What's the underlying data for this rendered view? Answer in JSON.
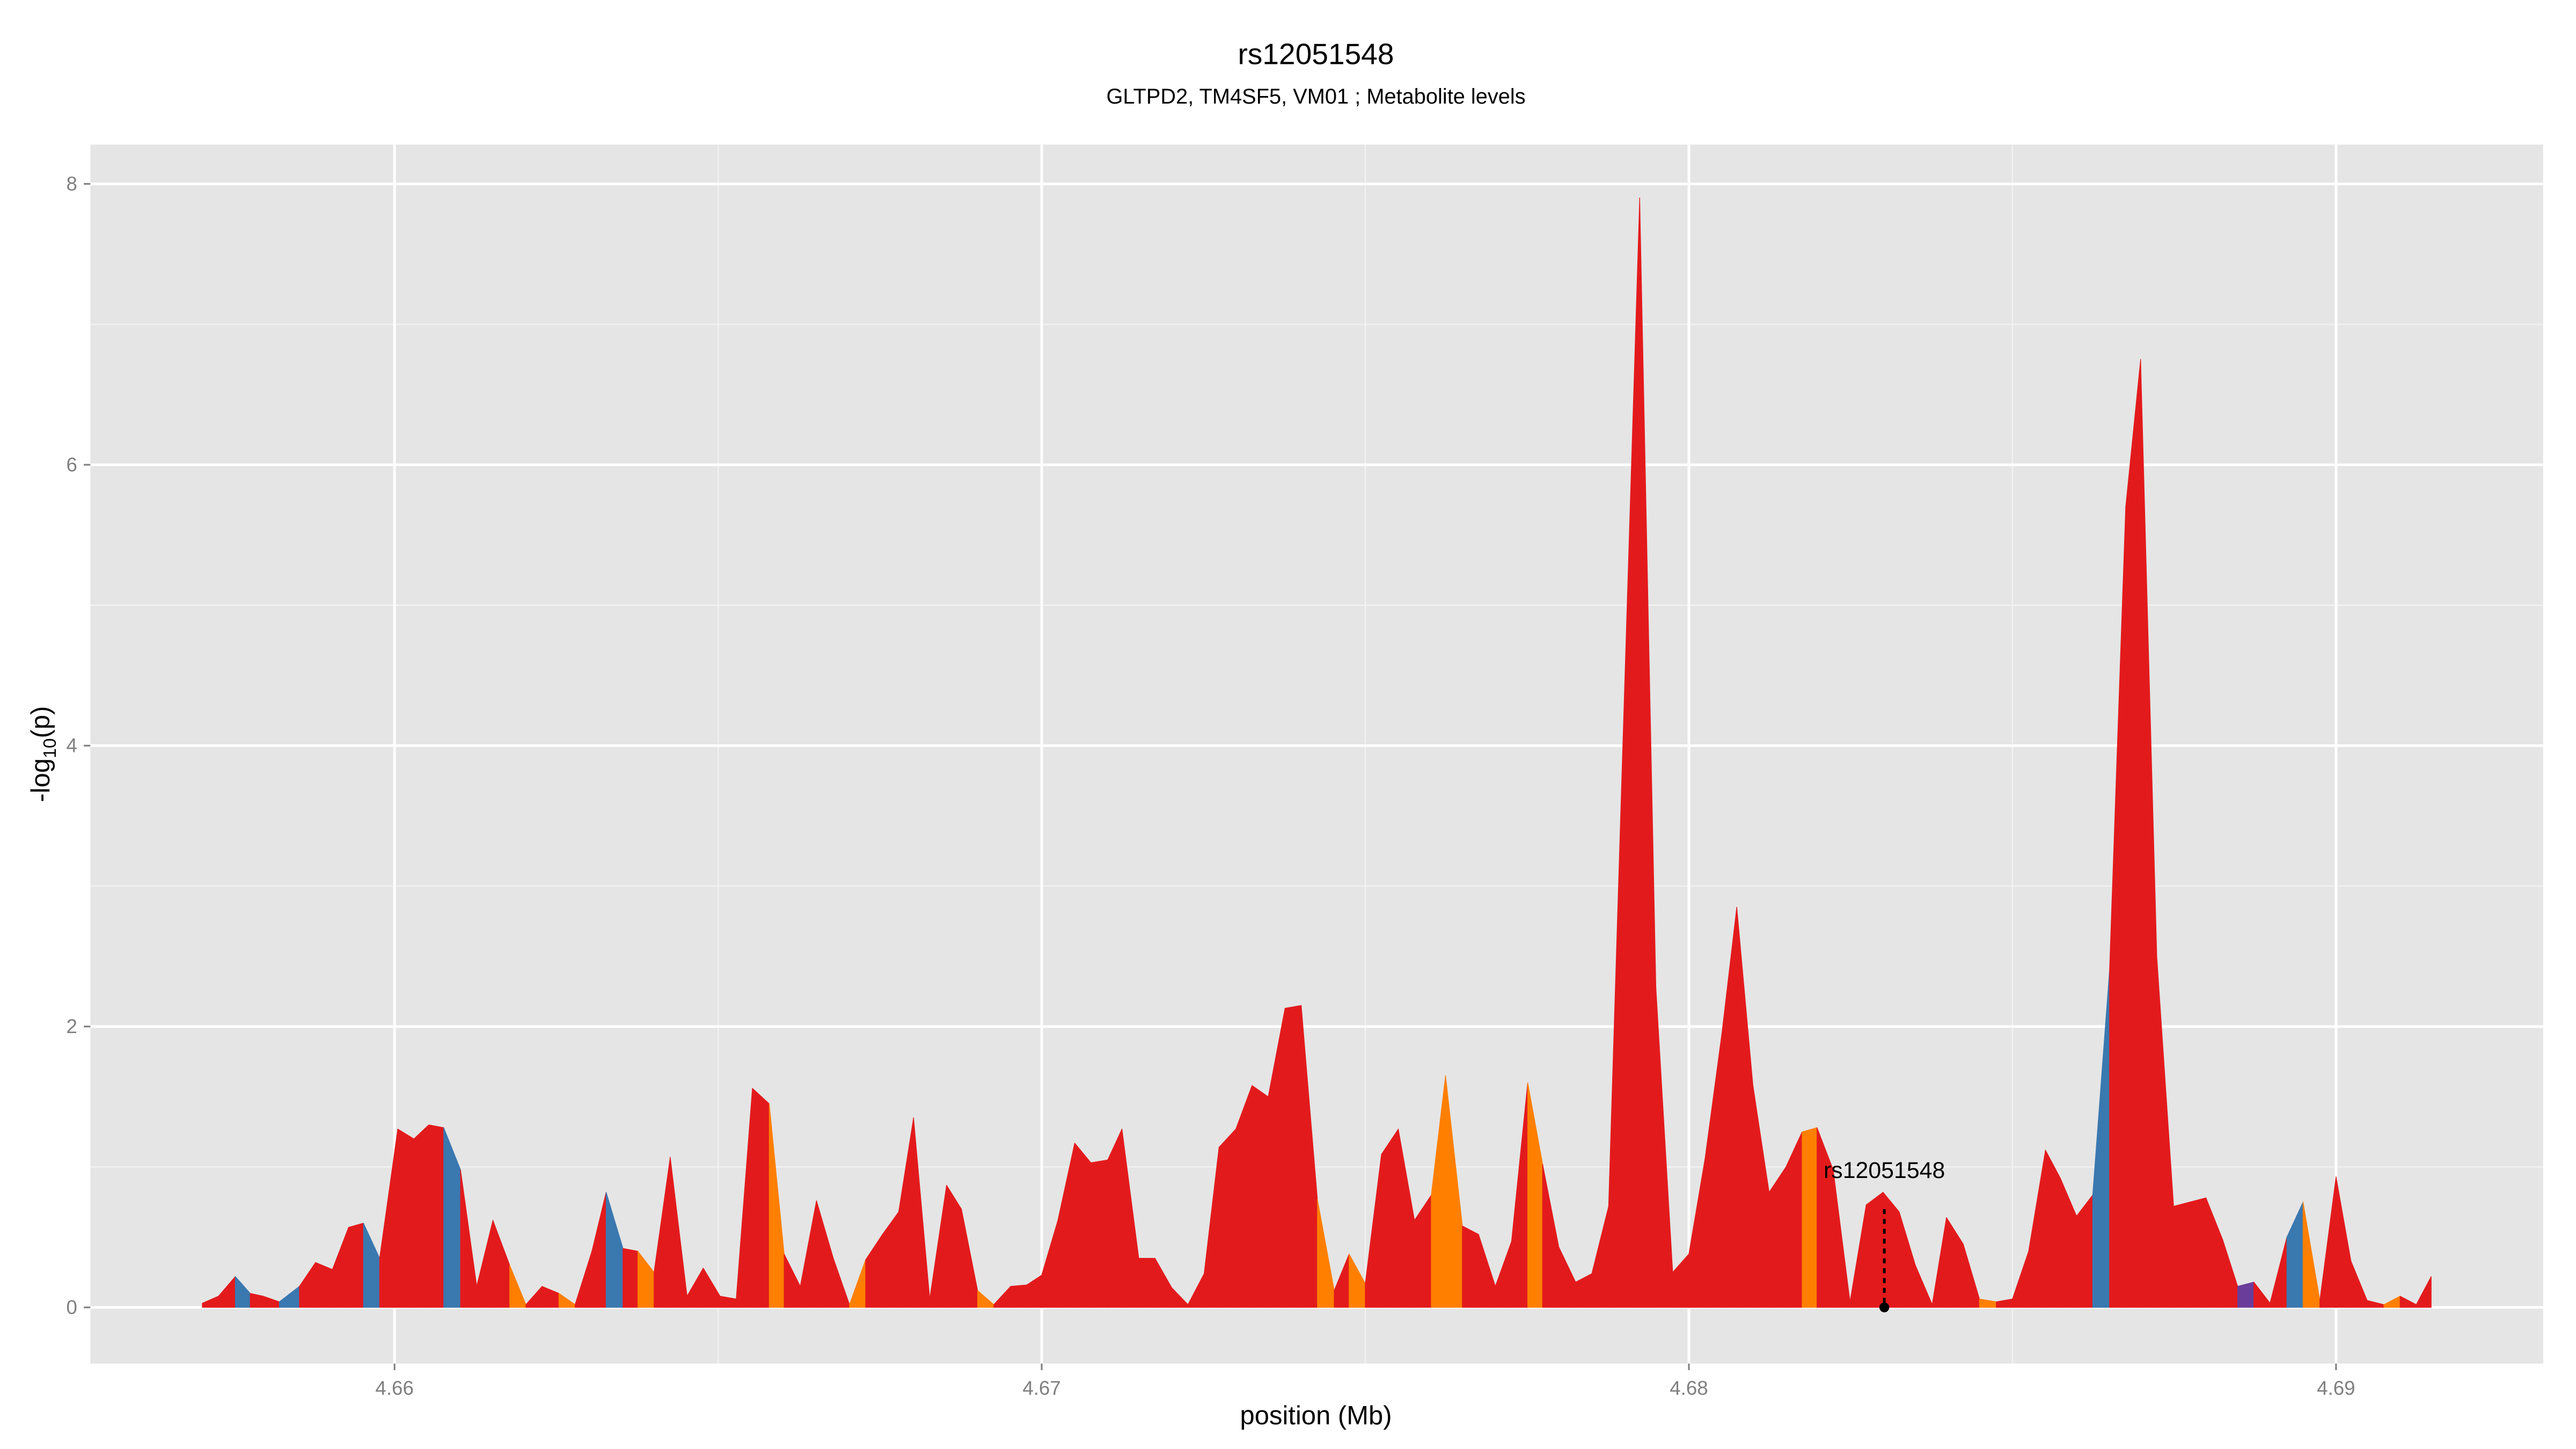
{
  "chart_data": {
    "type": "area",
    "title": "rs12051548",
    "subtitle": "GLTPD2, TM4SF5, VM01 ; Metabolite levels",
    "xlabel": "position (Mb)",
    "ylabel_parts": [
      "-log",
      "10",
      "(p)"
    ],
    "x": [
      4.65703,
      4.65728,
      4.65754,
      4.65777,
      4.65797,
      4.65822,
      4.65853,
      4.65878,
      4.65904,
      4.65929,
      4.65952,
      4.65977,
      4.66005,
      4.6603,
      4.66053,
      4.66076,
      4.66102,
      4.66127,
      4.66152,
      4.66178,
      4.66203,
      4.66228,
      4.66254,
      4.66279,
      4.66305,
      4.66327,
      4.66353,
      4.66376,
      4.66401,
      4.66426,
      4.66452,
      4.66477,
      4.66503,
      4.66528,
      4.66553,
      4.66579,
      4.66602,
      4.66627,
      4.66652,
      4.66678,
      4.66703,
      4.66728,
      4.66754,
      4.66779,
      4.66802,
      4.66827,
      4.66853,
      4.66876,
      4.66901,
      4.66926,
      4.66952,
      4.66977,
      4.67,
      4.67025,
      4.67051,
      4.67076,
      4.67102,
      4.67124,
      4.6715,
      4.67175,
      4.67201,
      4.67226,
      4.67251,
      4.67274,
      4.673,
      4.67325,
      4.6735,
      4.67376,
      4.67401,
      4.67426,
      4.67452,
      4.67475,
      4.675,
      4.67525,
      4.67551,
      4.67576,
      4.67602,
      4.67624,
      4.6765,
      4.67675,
      4.67701,
      4.67726,
      4.67751,
      4.67774,
      4.67799,
      4.67825,
      4.6785,
      4.67876,
      4.67924,
      4.67949,
      4.67975,
      4.68,
      4.68025,
      4.68051,
      4.68074,
      4.68099,
      4.68124,
      4.6815,
      4.68175,
      4.68198,
      4.68223,
      4.68249,
      4.68274,
      4.683,
      4.68325,
      4.6835,
      4.68376,
      4.68398,
      4.68424,
      4.68449,
      4.68475,
      4.685,
      4.68525,
      4.68551,
      4.68574,
      4.68599,
      4.68624,
      4.6865,
      4.68675,
      4.68698,
      4.68723,
      4.68749,
      4.68774,
      4.68799,
      4.68825,
      4.68848,
      4.68873,
      4.68898,
      4.68924,
      4.68949,
      4.68975,
      4.69,
      4.69023,
      4.69048,
      4.69074,
      4.69099,
      4.69124,
      4.69147
    ],
    "values": [
      0.03,
      0.08,
      0.22,
      0.1,
      0.08,
      0.04,
      0.15,
      0.32,
      0.27,
      0.57,
      0.6,
      0.35,
      1.27,
      1.2,
      1.3,
      1.28,
      0.98,
      0.15,
      0.62,
      0.3,
      0.02,
      0.15,
      0.1,
      0.02,
      0.4,
      0.82,
      0.42,
      0.4,
      0.25,
      1.07,
      0.08,
      0.28,
      0.08,
      0.06,
      1.56,
      1.45,
      0.38,
      0.15,
      0.76,
      0.35,
      0.02,
      0.34,
      0.52,
      0.68,
      1.35,
      0.06,
      0.87,
      0.7,
      0.12,
      0.02,
      0.15,
      0.16,
      0.23,
      0.62,
      1.17,
      1.03,
      1.05,
      1.27,
      0.35,
      0.35,
      0.14,
      0.02,
      0.24,
      1.14,
      1.27,
      1.58,
      1.5,
      2.13,
      2.15,
      0.77,
      0.12,
      0.38,
      0.17,
      1.09,
      1.27,
      0.62,
      0.8,
      1.65,
      0.58,
      0.52,
      0.15,
      0.47,
      1.6,
      1.02,
      0.43,
      0.18,
      0.24,
      0.72,
      7.9,
      2.28,
      0.25,
      0.38,
      1.06,
      1.95,
      2.85,
      1.58,
      0.82,
      1.0,
      1.25,
      1.28,
      0.98,
      0.04,
      0.73,
      0.82,
      0.68,
      0.3,
      0.02,
      0.64,
      0.45,
      0.06,
      0.04,
      0.06,
      0.4,
      1.12,
      0.92,
      0.65,
      0.8,
      2.4,
      5.7,
      6.75,
      2.5,
      0.72,
      0.75,
      0.78,
      0.48,
      0.15,
      0.18,
      0.03,
      0.5,
      0.75,
      0.05,
      0.93,
      0.33,
      0.05,
      0.02,
      0.08,
      0.02,
      0.22
    ],
    "colors": [
      "#e31a1c",
      "#e31a1c",
      "#3a78b0",
      "#e31a1c",
      "#e31a1c",
      "#3a78b0",
      "#e31a1c",
      "#e31a1c",
      "#e31a1c",
      "#e31a1c",
      "#3a78b0",
      "#e31a1c",
      "#e31a1c",
      "#e31a1c",
      "#e31a1c",
      "#3a78b0",
      "#e31a1c",
      "#e31a1c",
      "#e31a1c",
      "#ff7f00",
      "#e31a1c",
      "#e31a1c",
      "#ff7f00",
      "#e31a1c",
      "#e31a1c",
      "#3a78b0",
      "#e31a1c",
      "#ff7f00",
      "#e31a1c",
      "#e31a1c",
      "#e31a1c",
      "#e31a1c",
      "#e31a1c",
      "#e31a1c",
      "#e31a1c",
      "#ff7f00",
      "#e31a1c",
      "#e31a1c",
      "#e31a1c",
      "#e31a1c",
      "#ff7f00",
      "#e31a1c",
      "#e31a1c",
      "#e31a1c",
      "#e31a1c",
      "#e31a1c",
      "#e31a1c",
      "#e31a1c",
      "#ff7f00",
      "#e31a1c",
      "#e31a1c",
      "#e31a1c",
      "#e31a1c",
      "#e31a1c",
      "#e31a1c",
      "#e31a1c",
      "#e31a1c",
      "#e31a1c",
      "#e31a1c",
      "#e31a1c",
      "#e31a1c",
      "#e31a1c",
      "#e31a1c",
      "#e31a1c",
      "#e31a1c",
      "#e31a1c",
      "#e31a1c",
      "#e31a1c",
      "#e31a1c",
      "#ff7f00",
      "#e31a1c",
      "#ff7f00",
      "#e31a1c",
      "#e31a1c",
      "#e31a1c",
      "#e31a1c",
      "#ff7f00",
      "#ff7f00",
      "#e31a1c",
      "#e31a1c",
      "#e31a1c",
      "#e31a1c",
      "#ff7f00",
      "#e31a1c",
      "#e31a1c",
      "#e31a1c",
      "#e31a1c",
      "#e31a1c",
      "#e31a1c",
      "#e31a1c",
      "#e31a1c",
      "#e31a1c",
      "#e31a1c",
      "#e31a1c",
      "#e31a1c",
      "#e31a1c",
      "#e31a1c",
      "#e31a1c",
      "#ff7f00",
      "#e31a1c",
      "#e31a1c",
      "#e31a1c",
      "#e31a1c",
      "#e31a1c",
      "#e31a1c",
      "#e31a1c",
      "#e31a1c",
      "#e31a1c",
      "#e31a1c",
      "#ff7f00",
      "#e31a1c",
      "#e31a1c",
      "#e31a1c",
      "#e31a1c",
      "#e31a1c",
      "#e31a1c",
      "#3a78b0",
      "#e31a1c",
      "#e31a1c",
      "#e31a1c",
      "#e31a1c",
      "#e31a1c",
      "#e31a1c",
      "#e31a1c",
      "#e31a1c",
      "#6a3d9a",
      "#e31a1c",
      "#e31a1c",
      "#3a78b0",
      "#ff7f00",
      "#e31a1c",
      "#e31a1c",
      "#e31a1c",
      "#e31a1c",
      "#ff7f00",
      "#e31a1c",
      "#e31a1c",
      "#e31a1c"
    ],
    "annotation": {
      "label": "rs12051548",
      "x": 4.68302,
      "y": 0.7
    },
    "xlim": [
      4.6553,
      4.6932
    ],
    "ylim": [
      -0.4,
      8.28
    ],
    "xticks": [
      4.66,
      4.67,
      4.68,
      4.69
    ],
    "yticks": [
      0,
      2,
      4,
      6,
      8
    ],
    "xminorticks": [
      4.665,
      4.675,
      4.685
    ],
    "yminorticks": [
      1,
      3,
      5,
      7
    ],
    "grid": true
  }
}
